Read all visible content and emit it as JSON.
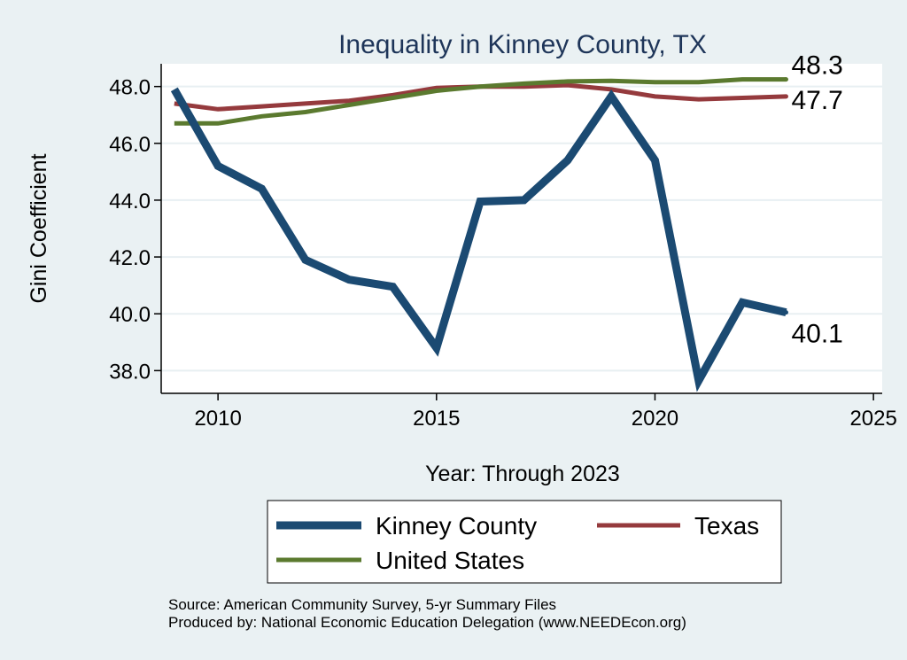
{
  "chart_data": {
    "type": "line",
    "title": "Inequality in Kinney County, TX",
    "xlabel": "Year: Through 2023",
    "ylabel": "Gini Coefficient",
    "x": [
      2009,
      2010,
      2011,
      2012,
      2013,
      2014,
      2015,
      2016,
      2017,
      2018,
      2019,
      2020,
      2021,
      2022,
      2023
    ],
    "xlim": [
      2008.7,
      2025.2
    ],
    "ylim": [
      37.2,
      48.8
    ],
    "xticks": [
      2010,
      2015,
      2020,
      2025
    ],
    "xtick_labels": [
      "2010",
      "2015",
      "2020",
      "2025"
    ],
    "yticks": [
      38,
      40,
      42,
      44,
      46,
      48
    ],
    "ytick_labels": [
      "38.0",
      "40.0",
      "42.0",
      "44.0",
      "46.0",
      "48.0"
    ],
    "grid": true,
    "series": [
      {
        "name": "Kinney County",
        "color": "#1b4a72",
        "values": [
          47.9,
          45.2,
          44.4,
          41.9,
          41.2,
          40.95,
          38.8,
          43.95,
          44.0,
          45.4,
          47.65,
          45.4,
          37.65,
          40.4,
          40.05
        ],
        "end_label": "40.1"
      },
      {
        "name": "Texas",
        "color": "#953a3d",
        "values": [
          47.4,
          47.2,
          47.3,
          47.4,
          47.5,
          47.7,
          47.95,
          48.0,
          48.0,
          48.05,
          47.9,
          47.65,
          47.55,
          47.6,
          47.65
        ],
        "end_label": "47.7"
      },
      {
        "name": "United States",
        "color": "#5b7a2f",
        "values": [
          46.7,
          46.7,
          46.95,
          47.1,
          47.35,
          47.6,
          47.85,
          48.0,
          48.1,
          48.18,
          48.2,
          48.15,
          48.15,
          48.25,
          48.25
        ],
        "end_label": "48.3"
      }
    ],
    "legend": {
      "placement": "bottom",
      "entries": [
        "Kinney County",
        "Texas",
        "United States"
      ]
    },
    "source_lines": [
      "Source: American Community Survey, 5-yr Summary Files",
      "Produced by: National Economic Education Delegation (www.NEEDEcon.org)"
    ]
  },
  "colors": {
    "page_background": "#eaf1f3",
    "plot_background": "#ffffff",
    "gridline": "#e8eff2",
    "axis": "#000000",
    "title": "#1e3559"
  }
}
